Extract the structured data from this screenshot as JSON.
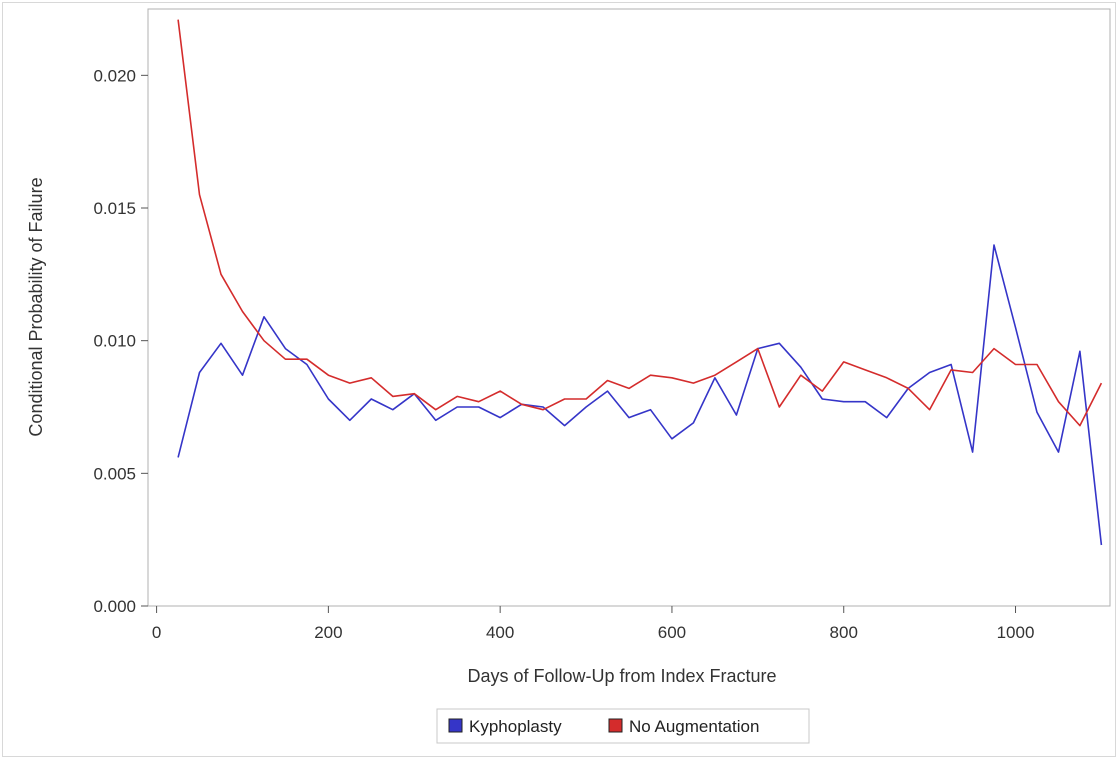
{
  "chart_data": {
    "type": "line",
    "title": "",
    "xlabel": "Days of Follow-Up from Index Fracture",
    "ylabel": "Conditional Probability of Failure",
    "xlim": [
      -10,
      1110
    ],
    "ylim": [
      0,
      0.0225
    ],
    "xticks": [
      0,
      200,
      400,
      600,
      800,
      1000
    ],
    "yticks": [
      0.0,
      0.005,
      0.01,
      0.015,
      0.02
    ],
    "ytick_labels": [
      "0.000",
      "0.005",
      "0.010",
      "0.015",
      "0.020"
    ],
    "grid": false,
    "legend_position": "bottom-center",
    "series": [
      {
        "name": "Kyphoplasty",
        "color": "#3535c8",
        "x": [
          25,
          50,
          75,
          100,
          125,
          150,
          175,
          200,
          225,
          250,
          275,
          300,
          325,
          350,
          375,
          400,
          425,
          450,
          475,
          500,
          525,
          550,
          575,
          600,
          625,
          650,
          675,
          700,
          725,
          750,
          775,
          800,
          825,
          850,
          875,
          900,
          925,
          950,
          975,
          1000,
          1025,
          1050,
          1075,
          1100
        ],
        "y": [
          0.0056,
          0.0088,
          0.0099,
          0.0087,
          0.0109,
          0.0097,
          0.0091,
          0.0078,
          0.007,
          0.0078,
          0.0074,
          0.008,
          0.007,
          0.0075,
          0.0075,
          0.0071,
          0.0076,
          0.0075,
          0.0068,
          0.0075,
          0.0081,
          0.0071,
          0.0074,
          0.0063,
          0.0069,
          0.0086,
          0.0072,
          0.0097,
          0.0099,
          0.009,
          0.0078,
          0.0077,
          0.0077,
          0.0071,
          0.0082,
          0.0088,
          0.0091,
          0.0058,
          0.0136,
          0.0105,
          0.0073,
          0.0058,
          0.0096,
          0.0023
        ]
      },
      {
        "name": "No Augmentation",
        "color": "#d42c2c",
        "x": [
          25,
          50,
          75,
          100,
          125,
          150,
          175,
          200,
          225,
          250,
          275,
          300,
          325,
          350,
          375,
          400,
          425,
          450,
          475,
          500,
          525,
          550,
          575,
          600,
          625,
          650,
          675,
          700,
          725,
          750,
          775,
          800,
          825,
          850,
          875,
          900,
          925,
          950,
          975,
          1000,
          1025,
          1050,
          1075,
          1100
        ],
        "y": [
          0.0221,
          0.0155,
          0.0125,
          0.0111,
          0.01,
          0.0093,
          0.0093,
          0.0087,
          0.0084,
          0.0086,
          0.0079,
          0.008,
          0.0074,
          0.0079,
          0.0077,
          0.0081,
          0.0076,
          0.0074,
          0.0078,
          0.0078,
          0.0085,
          0.0082,
          0.0087,
          0.0086,
          0.0084,
          0.0087,
          0.0092,
          0.0097,
          0.0075,
          0.0087,
          0.0081,
          0.0092,
          0.0089,
          0.0086,
          0.0082,
          0.0074,
          0.0089,
          0.0088,
          0.0097,
          0.0091,
          0.0091,
          0.0077,
          0.0068,
          0.0084
        ]
      }
    ]
  }
}
